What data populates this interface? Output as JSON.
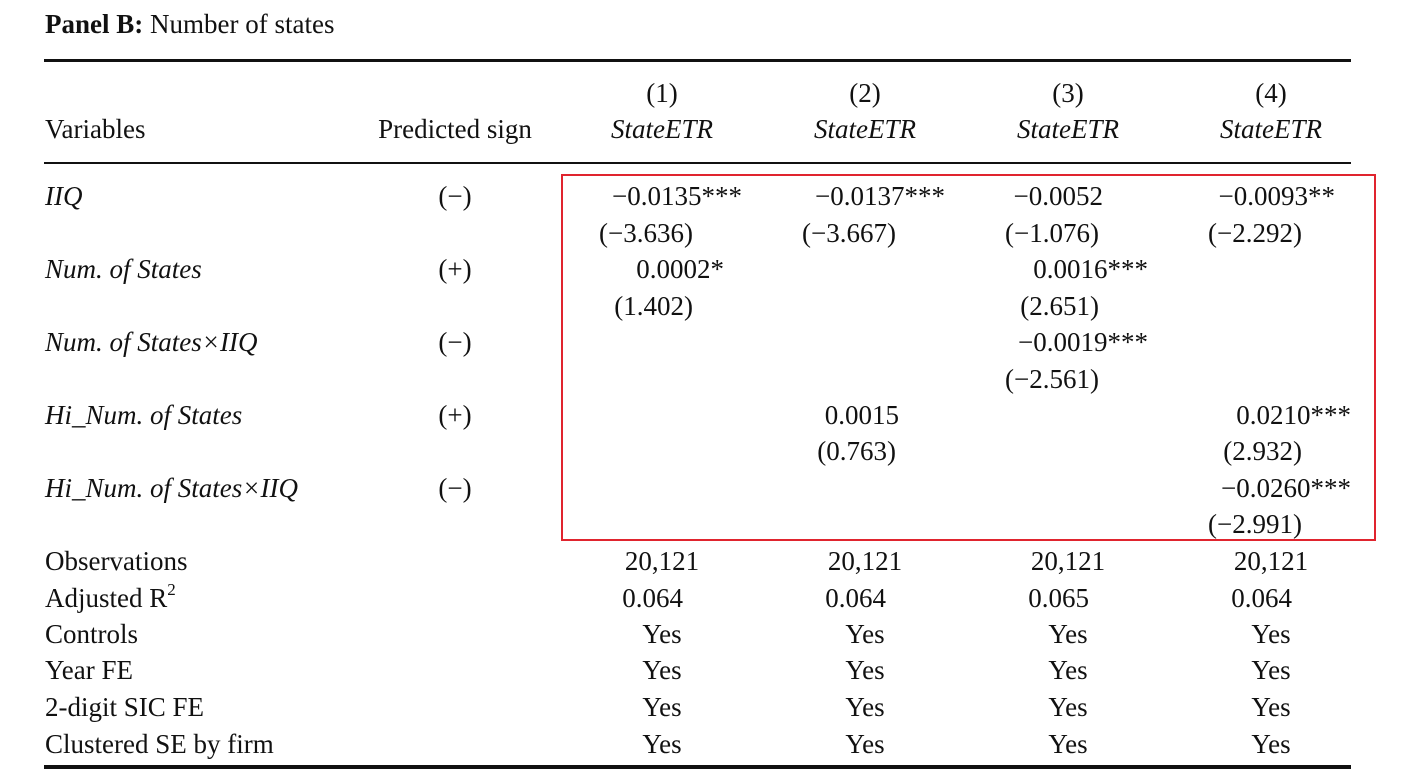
{
  "panel": {
    "label": "Panel B:",
    "title": "Number of states"
  },
  "header": {
    "variables": "Variables",
    "predicted_sign": "Predicted sign",
    "columns": [
      {
        "num": "(1)",
        "dv": "StateETR"
      },
      {
        "num": "(2)",
        "dv": "StateETR"
      },
      {
        "num": "(3)",
        "dv": "StateETR"
      },
      {
        "num": "(4)",
        "dv": "StateETR"
      }
    ]
  },
  "rows": [
    {
      "var": "IIQ",
      "sign": "(−)",
      "coef": [
        "−0.0135***",
        "−0.0137***",
        "−0.0052",
        "−0.0093**"
      ],
      "t": [
        "(−3.636)",
        "(−3.667)",
        "(−1.076)",
        "(−2.292)"
      ]
    },
    {
      "var": "Num. of States",
      "sign": "(+)",
      "coef": [
        "0.0002*",
        "",
        "0.0016***",
        ""
      ],
      "t": [
        "(1.402)",
        "",
        "(2.651)",
        ""
      ]
    },
    {
      "var": "Num. of States×IIQ",
      "sign": "(−)",
      "coef": [
        "",
        "",
        "−0.0019***",
        ""
      ],
      "t": [
        "",
        "",
        "(−2.561)",
        ""
      ]
    },
    {
      "var": "Hi_Num. of States",
      "sign": "(+)",
      "coef": [
        "",
        "0.0015",
        "",
        "0.0210***"
      ],
      "t": [
        "",
        "(0.763)",
        "",
        "(2.932)"
      ]
    },
    {
      "var": "Hi_Num. of States×IIQ",
      "sign": "(−)",
      "coef": [
        "",
        "",
        "",
        "−0.0260***"
      ],
      "t": [
        "",
        "",
        "",
        "(−2.991)"
      ]
    }
  ],
  "stats": [
    {
      "label": "Observations",
      "vals": [
        "20,121",
        "20,121",
        "20,121",
        "20,121"
      ]
    },
    {
      "label": "Adjusted R",
      "sup": "2",
      "vals": [
        "0.064",
        "0.064",
        "0.065",
        "0.064"
      ]
    },
    {
      "label": "Controls",
      "vals": [
        "Yes",
        "Yes",
        "Yes",
        "Yes"
      ]
    },
    {
      "label": "Year FE",
      "vals": [
        "Yes",
        "Yes",
        "Yes",
        "Yes"
      ]
    },
    {
      "label": "2-digit SIC FE",
      "vals": [
        "Yes",
        "Yes",
        "Yes",
        "Yes"
      ]
    },
    {
      "label": "Clustered SE by firm",
      "vals": [
        "Yes",
        "Yes",
        "Yes",
        "Yes"
      ]
    }
  ],
  "colors": {
    "highlight": "#e0242e",
    "text": "#111111"
  }
}
